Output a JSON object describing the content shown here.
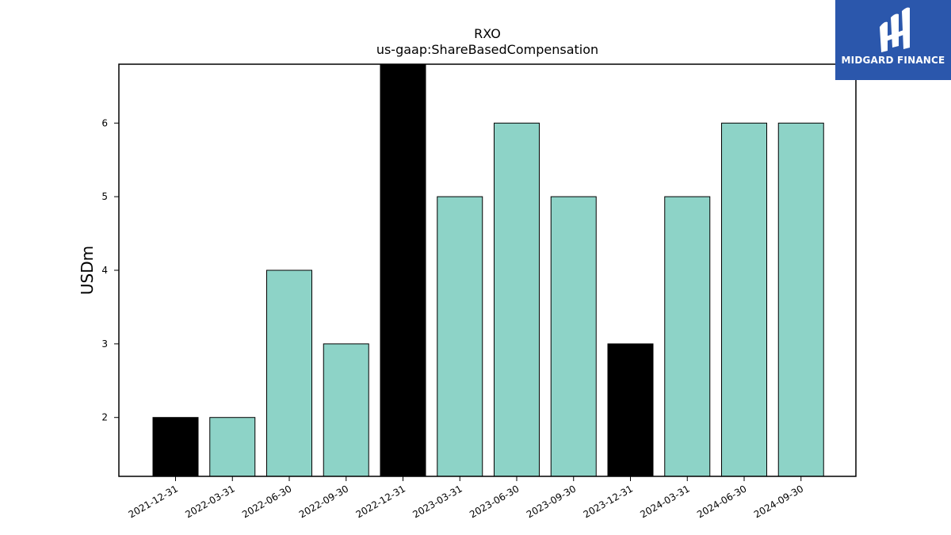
{
  "brand": {
    "name": "MIDGARD FINANCE",
    "bg_color": "#2b57ac"
  },
  "chart_data": {
    "type": "bar",
    "title": "RXO",
    "subtitle": "us-gaap:ShareBasedCompensation",
    "xlabel": "",
    "ylabel": "USDm",
    "ylim": [
      1.2,
      6.8
    ],
    "yticks": [
      2,
      3,
      4,
      5,
      6
    ],
    "grid": false,
    "categories": [
      "2021-12-31",
      "2022-03-31",
      "2022-06-30",
      "2022-09-30",
      "2022-12-31",
      "2023-03-31",
      "2023-06-30",
      "2023-09-30",
      "2023-12-31",
      "2024-03-31",
      "2024-06-30",
      "2024-09-30"
    ],
    "values": [
      2,
      2,
      4,
      3,
      7,
      5,
      6,
      5,
      3,
      5,
      6,
      6
    ],
    "bar_colors": [
      "#000000",
      "#8dd3c7",
      "#8dd3c7",
      "#8dd3c7",
      "#000000",
      "#8dd3c7",
      "#8dd3c7",
      "#8dd3c7",
      "#000000",
      "#8dd3c7",
      "#8dd3c7",
      "#8dd3c7"
    ]
  }
}
